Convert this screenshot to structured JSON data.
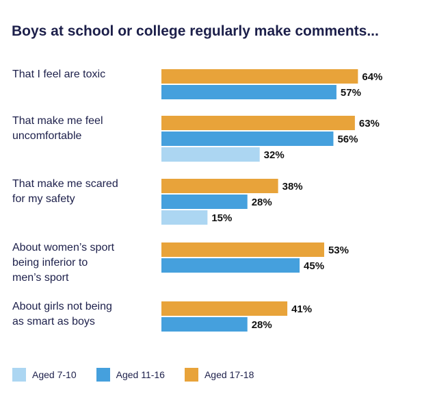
{
  "chart_data": {
    "type": "bar",
    "orientation": "horizontal",
    "title": "Boys at school or college regularly make comments...",
    "categories": [
      [
        "That I feel are toxic"
      ],
      [
        "That make me feel",
        "uncomfortable"
      ],
      [
        "That make me scared",
        "for my safety"
      ],
      [
        "About women’s sport",
        "being inferior to",
        "men’s sport"
      ],
      [
        "About girls not being",
        "as smart as boys"
      ]
    ],
    "series": [
      {
        "name": "Aged 17-18",
        "color": "#e8a33a",
        "values": [
          64,
          63,
          38,
          53,
          41
        ]
      },
      {
        "name": "Aged 11-16",
        "color": "#45a0dd",
        "values": [
          57,
          56,
          28,
          45,
          28
        ]
      },
      {
        "name": "Aged 7-10",
        "color": "#acd6f2",
        "values": [
          null,
          32,
          15,
          null,
          null
        ]
      }
    ],
    "value_suffix": "%",
    "xlim": [
      0,
      100
    ],
    "legend_position": "bottom-left",
    "grid": false
  },
  "legend": {
    "items": [
      {
        "label": "Aged 7-10",
        "color": "#acd6f2"
      },
      {
        "label": "Aged 11-16",
        "color": "#45a0dd"
      },
      {
        "label": "Aged 17-18",
        "color": "#e8a33a"
      }
    ]
  }
}
